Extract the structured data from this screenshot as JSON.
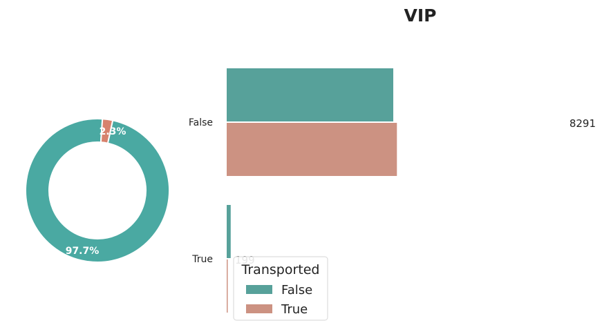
{
  "title": "VIP",
  "colors": {
    "false": "#57a19a",
    "true": "#cc9282",
    "donut_false": "#4aa9a2",
    "donut_true": "#d7826d",
    "label": "#ffffff",
    "text": "#222222"
  },
  "chart_data": [
    {
      "type": "pie",
      "variant": "donut",
      "slices": [
        {
          "label": "False",
          "value": 97.7,
          "display": "97.7%"
        },
        {
          "label": "True",
          "value": 2.3,
          "display": "2.3%"
        }
      ]
    },
    {
      "type": "bar",
      "orientation": "horizontal",
      "categories": [
        "False",
        "True"
      ],
      "series": [
        {
          "name": "False",
          "values": [
            8291,
            199
          ]
        },
        {
          "name": "True",
          "values": [
            8472,
            7
          ]
        }
      ],
      "value_labels": [
        "8291",
        "199"
      ],
      "legend": {
        "title": "Transported",
        "entries": [
          "False",
          "True"
        ],
        "placement": "lower-center"
      }
    }
  ]
}
